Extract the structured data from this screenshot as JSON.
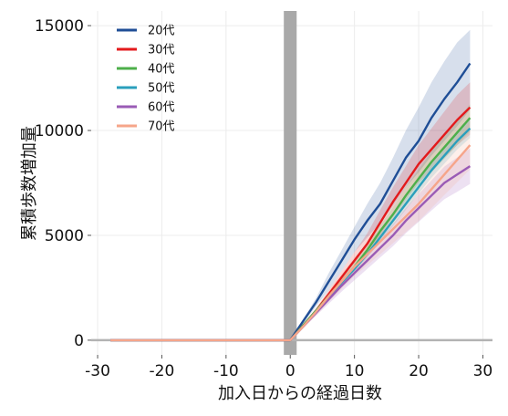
{
  "chart_data": {
    "type": "line",
    "xlabel": "加入日からの経過日数",
    "ylabel": "累積歩数増加量",
    "xlim": [
      -31,
      31.5
    ],
    "ylim": [
      -700,
      15700
    ],
    "xticks": [
      -30,
      -20,
      -10,
      0,
      10,
      20,
      30
    ],
    "yticks": [
      0,
      5000,
      10000,
      15000
    ],
    "grid": true,
    "legend_position": "top-left",
    "shaded_band": {
      "x_start": -1,
      "x_end": 1,
      "color": "#a9a9a9"
    },
    "series": [
      {
        "name": "20代",
        "color": "#1f4e96",
        "x": [
          -28,
          0,
          2,
          4,
          6,
          8,
          10,
          12,
          14,
          16,
          18,
          20,
          22,
          24,
          26,
          28
        ],
        "y": [
          0,
          0,
          900,
          1800,
          2800,
          3800,
          4800,
          5700,
          6500,
          7600,
          8700,
          9500,
          10600,
          11500,
          12300,
          13200
        ],
        "lower": [
          0,
          0,
          800,
          1600,
          2400,
          3300,
          4200,
          4900,
          5600,
          6400,
          7300,
          8000,
          8800,
          9500,
          10200,
          11000
        ],
        "upper": [
          0,
          0,
          1000,
          2000,
          3200,
          4300,
          5400,
          6500,
          7500,
          8700,
          10000,
          11100,
          12300,
          13300,
          14200,
          14800
        ]
      },
      {
        "name": "30代",
        "color": "#e31a1c",
        "x": [
          -28,
          0,
          2,
          4,
          6,
          8,
          10,
          12,
          14,
          16,
          18,
          20,
          22,
          24,
          26,
          28
        ],
        "y": [
          0,
          0,
          700,
          1400,
          2200,
          3000,
          3800,
          4600,
          5600,
          6600,
          7500,
          8400,
          9100,
          9800,
          10500,
          11100
        ],
        "lower": [
          0,
          0,
          650,
          1300,
          2000,
          2700,
          3400,
          4100,
          5000,
          5900,
          6700,
          7500,
          8100,
          8700,
          9300,
          9800
        ],
        "upper": [
          0,
          0,
          750,
          1500,
          2400,
          3300,
          4200,
          5100,
          6200,
          7300,
          8300,
          9300,
          10100,
          10900,
          11700,
          12300
        ]
      },
      {
        "name": "40代",
        "color": "#4daf4a",
        "x": [
          -28,
          0,
          2,
          4,
          6,
          8,
          10,
          12,
          14,
          16,
          18,
          20,
          22,
          24,
          26,
          28
        ],
        "y": [
          0,
          0,
          700,
          1400,
          2100,
          2800,
          3500,
          4300,
          5200,
          6000,
          6900,
          7700,
          8500,
          9200,
          9900,
          10600
        ],
        "lower": [
          0,
          0,
          670,
          1330,
          2000,
          2650,
          3300,
          4050,
          4900,
          5650,
          6500,
          7250,
          8000,
          8650,
          9300,
          9950
        ],
        "upper": [
          0,
          0,
          730,
          1470,
          2200,
          2950,
          3700,
          4550,
          5500,
          6350,
          7300,
          8150,
          9000,
          9750,
          10500,
          11250
        ]
      },
      {
        "name": "50代",
        "color": "#2a9fbc",
        "x": [
          -28,
          0,
          2,
          4,
          6,
          8,
          10,
          12,
          14,
          16,
          18,
          20,
          22,
          24,
          26,
          28
        ],
        "y": [
          0,
          0,
          650,
          1350,
          2050,
          2750,
          3400,
          4100,
          4900,
          5700,
          6500,
          7300,
          8100,
          8800,
          9500,
          10100
        ],
        "lower": [
          0,
          0,
          620,
          1290,
          1960,
          2630,
          3250,
          3920,
          4690,
          5450,
          6220,
          6990,
          7750,
          8420,
          9090,
          9650
        ],
        "upper": [
          0,
          0,
          680,
          1410,
          2140,
          2870,
          3550,
          4280,
          5110,
          5950,
          6780,
          7610,
          8450,
          9180,
          9910,
          10550
        ]
      },
      {
        "name": "60代",
        "color": "#9a5bb5",
        "x": [
          -28,
          0,
          2,
          4,
          6,
          8,
          10,
          12,
          14,
          16,
          18,
          20,
          22,
          24,
          26,
          28
        ],
        "y": [
          0,
          0,
          650,
          1300,
          1950,
          2600,
          3200,
          3800,
          4400,
          5000,
          5700,
          6300,
          6900,
          7500,
          7900,
          8300
        ],
        "lower": [
          0,
          0,
          580,
          1160,
          1740,
          2320,
          2860,
          3400,
          3940,
          4480,
          5100,
          5640,
          6180,
          6720,
          7080,
          7450
        ],
        "upper": [
          0,
          0,
          720,
          1440,
          2160,
          2880,
          3540,
          4200,
          4860,
          5520,
          6300,
          6960,
          7620,
          8280,
          8720,
          9150
        ]
      },
      {
        "name": "70代",
        "color": "#f6a58a",
        "x": [
          -28,
          0,
          2,
          4,
          6,
          8,
          10,
          12,
          14,
          16,
          18,
          20,
          22,
          24,
          26,
          28
        ],
        "y": [
          0,
          0,
          650,
          1350,
          2100,
          2800,
          3500,
          4100,
          4700,
          5300,
          5900,
          6500,
          7200,
          7900,
          8600,
          9300
        ],
        "lower": [
          0,
          0,
          560,
          1170,
          1830,
          2440,
          3050,
          3580,
          4100,
          4630,
          5150,
          5680,
          6300,
          6920,
          7530,
          8150
        ],
        "upper": [
          0,
          0,
          740,
          1530,
          2370,
          3160,
          3950,
          4620,
          5300,
          5970,
          6650,
          7320,
          8100,
          8880,
          9670,
          10450
        ]
      }
    ]
  }
}
